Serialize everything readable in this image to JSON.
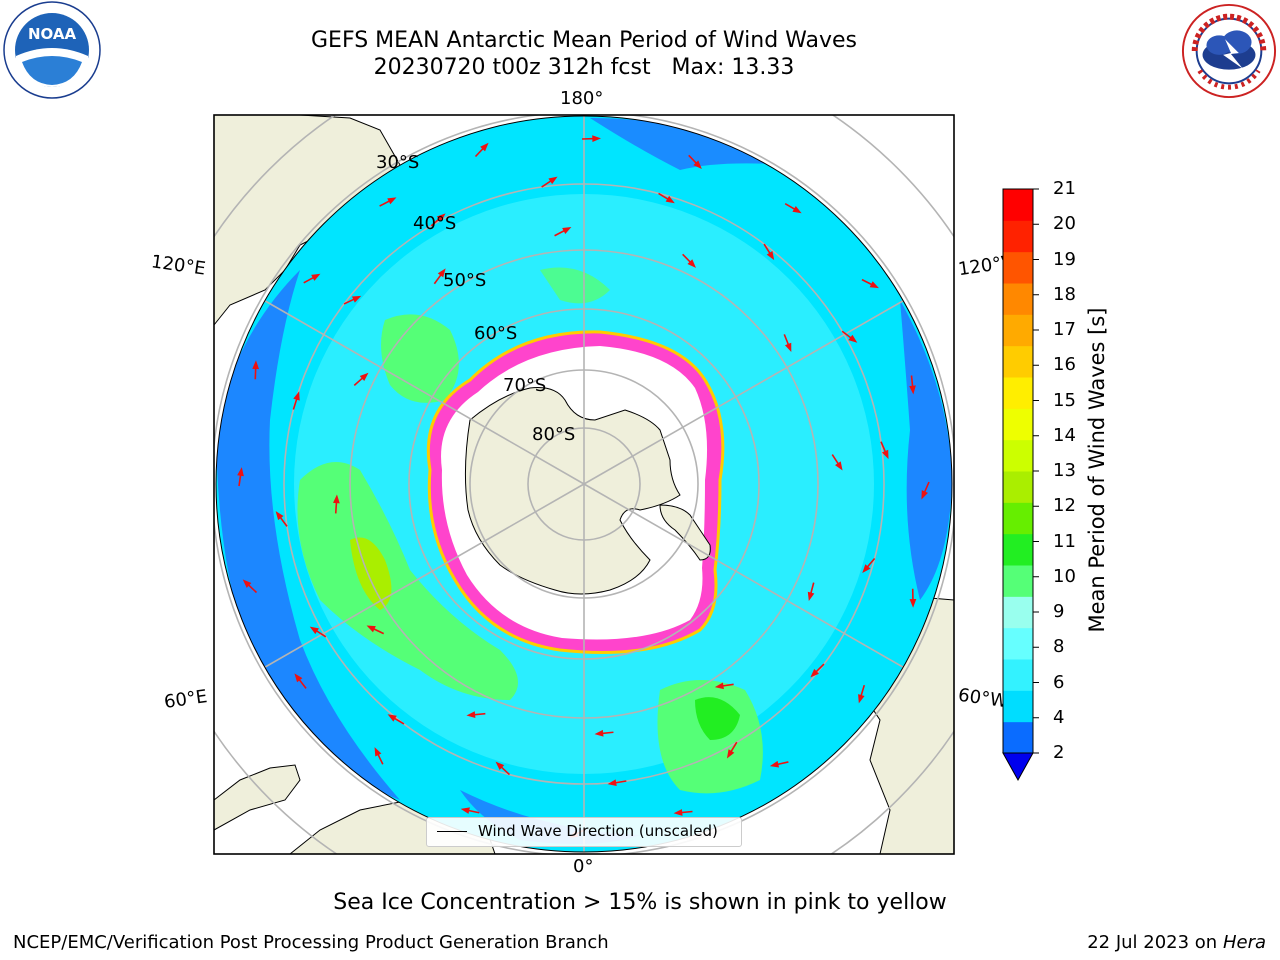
{
  "header": {
    "title_line1": "GEFS MEAN Antarctic Mean Period of Wind Waves",
    "title_line2": "20230720 t00z 312h fcst   Max: 13.33"
  },
  "logos": {
    "left": "NOAA",
    "left_ring_text": "NATIONAL OCEANIC AND ATMOSPHERIC ADMINISTRATION · U.S. DEPARTMENT OF COMMERCE",
    "right_ring_text": "NATIONAL WEATHER SERVICE"
  },
  "map": {
    "projection": "south-polar-stereographic",
    "longitude_labels": {
      "top": "180°",
      "bottom": "0°",
      "left_upper": "120°E",
      "left_lower": "60°E",
      "right_upper": "120°W",
      "right_lower": "60°W"
    },
    "latitude_labels": [
      "30°S",
      "40°S",
      "50°S",
      "60°S",
      "70°S",
      "80°S"
    ],
    "colors": {
      "land": "#efefdb",
      "ocean_low": "#1f7cff",
      "ocean_mid": "#00e5ff",
      "ocean_light": "#4df5ff",
      "ice_edge": "#ff44cc",
      "ice_fill": "#ffffff",
      "grid": "#b4b4b4",
      "arrow": "#ee1111"
    }
  },
  "legend": {
    "label": "Wind Wave Direction (unscaled)"
  },
  "colorbar": {
    "title": "Mean Period of Wind Waves [s]",
    "ticks": [
      "2",
      "4",
      "6",
      "8",
      "9",
      "10",
      "11",
      "12",
      "13",
      "14",
      "15",
      "16",
      "17",
      "18",
      "19",
      "20",
      "21"
    ],
    "colors": [
      "#0a6cff",
      "#00ddff",
      "#33f2ff",
      "#66ffff",
      "#99ffee",
      "#55ff77",
      "#22ee22",
      "#66ee00",
      "#aaee00",
      "#ccff00",
      "#eeff00",
      "#ffee00",
      "#ffcc00",
      "#ffaa00",
      "#ff8800",
      "#ff5500",
      "#ff2200",
      "#ff0000"
    ],
    "extend_color": "#0000ee"
  },
  "notes": {
    "sea_ice": "Sea Ice Concentration > 15% is shown in pink to yellow"
  },
  "footer": {
    "left": "NCEP/EMC/Verification Post Processing Product Generation Branch",
    "right_date": "22 Jul 2023 on",
    "right_machine": "Hera"
  }
}
